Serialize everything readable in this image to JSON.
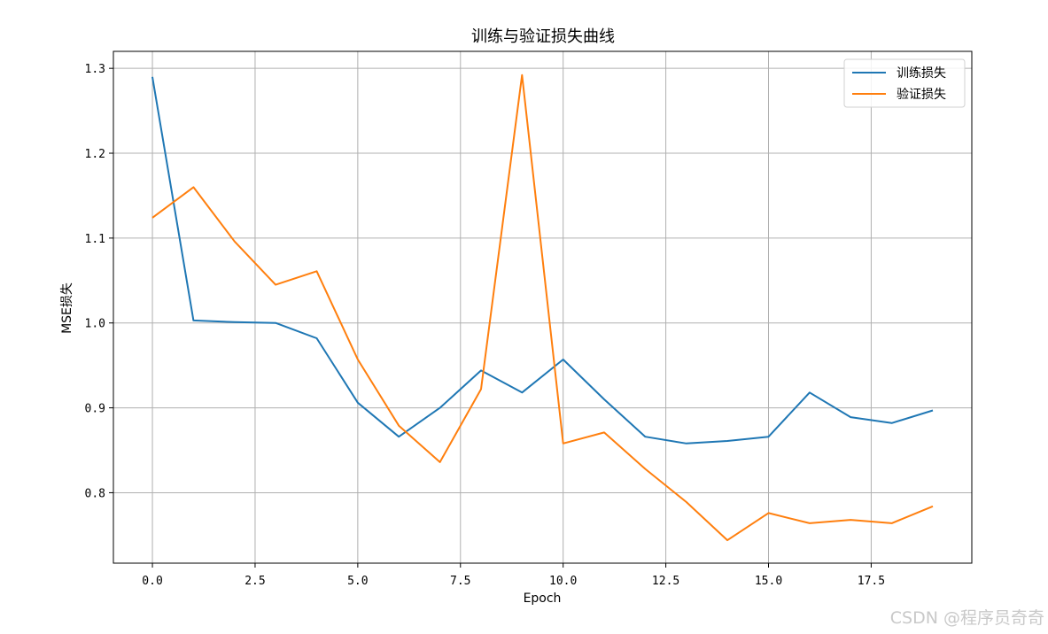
{
  "chart_data": {
    "type": "line",
    "title": "训练与验证损失曲线",
    "xlabel": "Epoch",
    "ylabel": "MSE损失",
    "x": [
      0,
      1,
      2,
      3,
      4,
      5,
      6,
      7,
      8,
      9,
      10,
      11,
      12,
      13,
      14,
      15,
      16,
      17,
      18,
      19
    ],
    "xlim": [
      -0.95,
      19.95
    ],
    "ylim": [
      0.717,
      1.32
    ],
    "xticks": [
      0,
      2.5,
      5,
      7.5,
      10,
      12.5,
      15,
      17.5
    ],
    "xtick_labels": [
      "0.0",
      "2.5",
      "5.0",
      "7.5",
      "10.0",
      "12.5",
      "15.0",
      "17.5"
    ],
    "yticks": [
      0.8,
      0.9,
      1.0,
      1.1,
      1.2,
      1.3
    ],
    "ytick_labels": [
      "0.8",
      "0.9",
      "1.0",
      "1.1",
      "1.2",
      "1.3"
    ],
    "grid": true,
    "legend_position": "top-right",
    "series": [
      {
        "name": "训练损失",
        "color": "#1f77b4",
        "values": [
          1.29,
          1.003,
          1.001,
          1.0,
          0.982,
          0.906,
          0.866,
          0.9,
          0.944,
          0.918,
          0.957,
          0.91,
          0.866,
          0.858,
          0.861,
          0.866,
          0.918,
          0.889,
          0.882,
          0.897
        ]
      },
      {
        "name": "验证损失",
        "color": "#ff7f0e",
        "values": [
          1.124,
          1.16,
          1.096,
          1.045,
          1.061,
          0.957,
          0.879,
          0.836,
          0.922,
          1.292,
          0.858,
          0.871,
          0.828,
          0.789,
          0.744,
          0.776,
          0.764,
          0.768,
          0.764,
          0.784
        ]
      }
    ]
  },
  "watermark": "CSDN @程序员奇奇"
}
